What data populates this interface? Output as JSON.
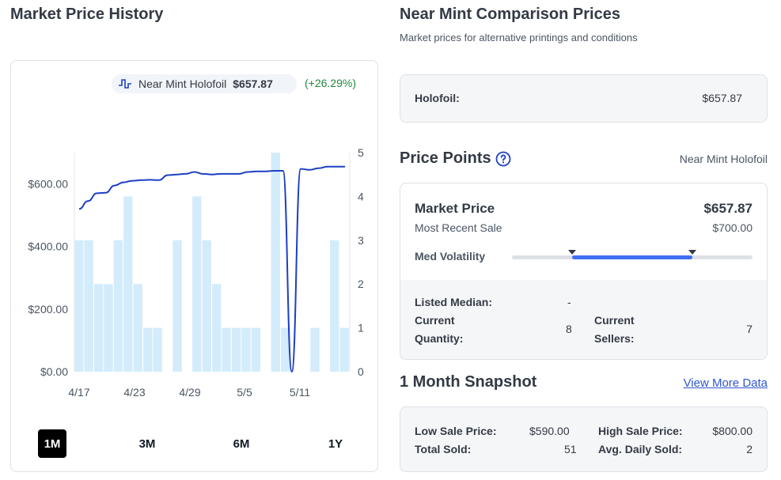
{
  "market_history": {
    "title": "Market Price History",
    "legend": {
      "icon": "price-line-icon",
      "name": "Near Mint Holofoil",
      "value": "$657.87",
      "change": "(+26.29%)"
    },
    "ranges": [
      "1M",
      "3M",
      "6M",
      "1Y"
    ],
    "active_range": "1M"
  },
  "chart_data": {
    "type": "line",
    "x_tick_labels": [
      "4/17",
      "4/23",
      "4/29",
      "5/5",
      "5/11"
    ],
    "y_left_ticks": [
      "$0.00",
      "$200.00",
      "$400.00",
      "$600.00"
    ],
    "y_left_range": [
      0,
      700
    ],
    "y_right_ticks": [
      "0",
      "1",
      "2",
      "3",
      "4",
      "5"
    ],
    "y_right_range": [
      0,
      5
    ],
    "series": [
      {
        "axis": "left",
        "color": "#1d3fc4",
        "values": [
          520,
          545,
          570,
          572,
          595,
          605,
          610,
          612,
          613,
          612,
          628,
          630,
          632,
          638,
          632,
          630,
          632,
          632,
          632,
          638,
          640,
          640,
          642,
          642,
          0,
          648,
          645,
          650,
          655,
          655,
          655
        ]
      },
      {
        "type": "bar",
        "axis": "right",
        "color": "#d3ecfb",
        "values": [
          3,
          3,
          2,
          2,
          3,
          4,
          2,
          1,
          1,
          0,
          3,
          0,
          4,
          3,
          2,
          1,
          1,
          1,
          1,
          0,
          5,
          1,
          0,
          0,
          1,
          0,
          3,
          1
        ]
      }
    ],
    "grid": false
  },
  "comparison": {
    "title": "Near Mint Comparison Prices",
    "subtitle": "Market prices for alternative printings and conditions",
    "rows": [
      {
        "label": "Holofoil:",
        "value": "$657.87"
      }
    ]
  },
  "price_points": {
    "title": "Price Points",
    "help_icon": "question-circle-icon",
    "condition": "Near Mint Holofoil",
    "market_price_label": "Market Price",
    "market_price": "$657.87",
    "recent_sale_label": "Most Recent Sale",
    "recent_sale": "$700.00",
    "volatility_label": "Med Volatility",
    "volatility_range": [
      0.25,
      0.75
    ],
    "listed_median_label": "Listed Median:",
    "listed_median": "-",
    "current_quantity_label": "Current Quantity:",
    "current_quantity": "8",
    "current_sellers_label": "Current Sellers:",
    "current_sellers": "7"
  },
  "snapshot": {
    "title": "1 Month Snapshot",
    "link": "View More Data",
    "low_sale_label": "Low Sale Price:",
    "low_sale": "$590.00",
    "high_sale_label": "High Sale Price:",
    "high_sale": "$800.00",
    "total_sold_label": "Total Sold:",
    "total_sold": "51",
    "avg_daily_label": "Avg. Daily Sold:",
    "avg_daily": "2"
  }
}
